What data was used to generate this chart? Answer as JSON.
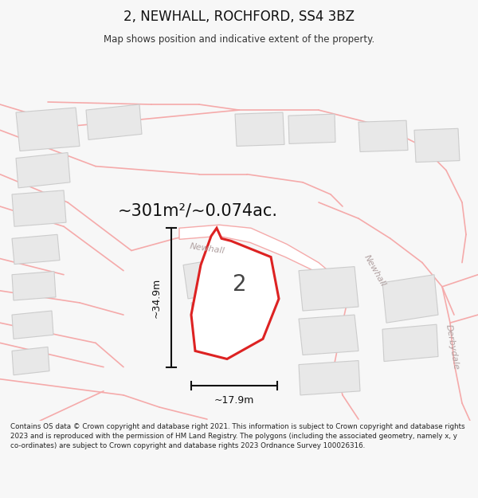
{
  "title": "2, NEWHALL, ROCHFORD, SS4 3BZ",
  "subtitle": "Map shows position and indicative extent of the property.",
  "footer": "Contains OS data © Crown copyright and database right 2021. This information is subject to Crown copyright and database rights 2023 and is reproduced with the permission of HM Land Registry. The polygons (including the associated geometry, namely x, y co-ordinates) are subject to Crown copyright and database rights 2023 Ordnance Survey 100026316.",
  "area_label": "~301m²/~0.074ac.",
  "dim_h": "~17.9m",
  "dim_v": "~34.9m",
  "property_label": "2",
  "road_label1": "Newhall",
  "road_label2": "Newhall",
  "road_label3": "Derbydale",
  "bg_color": "#f7f7f7",
  "map_bg": "#ffffff",
  "property_fill": "#ffffff",
  "property_edge": "#dd2222",
  "building_fill": "#e8e8e8",
  "building_edge": "#cccccc",
  "road_line_color": "#f5aaaa",
  "road_fill": "#f5aaaa",
  "annotation_color": "#111111",
  "road_text_color": "#b0a0a0"
}
